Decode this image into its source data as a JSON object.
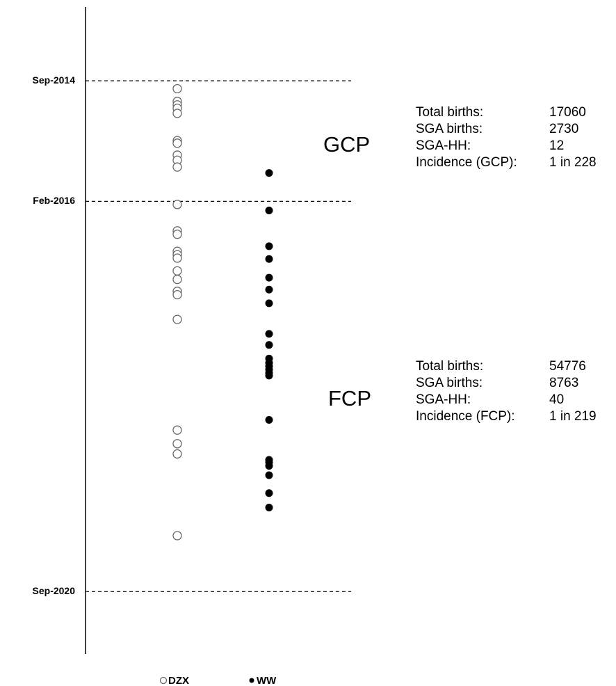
{
  "chart_data": {
    "type": "strip",
    "ylim": [
      2013.8,
      2021.4
    ],
    "y_inverted": true,
    "yticks": [
      {
        "value": 2014.667,
        "label": "Sep-2014"
      },
      {
        "value": 2016.083,
        "label": "Feb-2016"
      },
      {
        "value": 2020.667,
        "label": "Sep-2020"
      }
    ],
    "grid": true,
    "series": [
      {
        "name": "DZX",
        "marker": "open",
        "color": "#666666",
        "values": [
          2014.76,
          2014.91,
          2014.95,
          2014.99,
          2015.05,
          2015.37,
          2015.4,
          2015.54,
          2015.6,
          2015.68,
          2016.12,
          2016.43,
          2016.47,
          2016.67,
          2016.71,
          2016.75,
          2016.9,
          2017.0,
          2017.14,
          2017.18,
          2017.47,
          2018.77,
          2018.93,
          2019.05,
          2020.01
        ]
      },
      {
        "name": "WW",
        "marker": "filled",
        "color": "#000000",
        "values": [
          2015.75,
          2016.19,
          2016.61,
          2016.76,
          2016.98,
          2017.12,
          2017.28,
          2017.64,
          2017.77,
          2017.93,
          2017.98,
          2018.02,
          2018.06,
          2018.1,
          2018.13,
          2018.65,
          2019.12,
          2019.15,
          2019.19,
          2019.3,
          2019.51,
          2019.68
        ]
      }
    ],
    "annotations": [
      {
        "label": "GCP",
        "rows": [
          [
            "Total births:",
            17060
          ],
          [
            "SGA births:",
            2730
          ],
          [
            "SGA-HH:",
            12
          ],
          [
            "Incidence (GCP):",
            "1 in 228"
          ]
        ]
      },
      {
        "label": "FCP",
        "rows": [
          [
            "Total births:",
            54776
          ],
          [
            "SGA births:",
            8763
          ],
          [
            "SGA-HH:",
            40
          ],
          [
            "Incidence (FCP):",
            "1 in 219"
          ]
        ]
      }
    ]
  }
}
